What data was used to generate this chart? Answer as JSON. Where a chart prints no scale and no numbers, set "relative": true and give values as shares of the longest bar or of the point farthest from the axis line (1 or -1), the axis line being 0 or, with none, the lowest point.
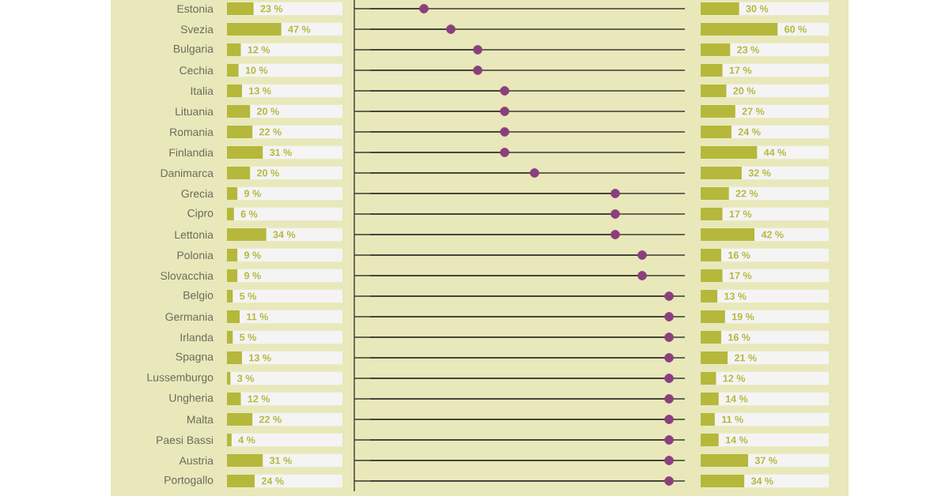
{
  "chart_data": [
    {
      "type": "bar",
      "orientation": "horizontal",
      "categories": [
        "Estonia",
        "Svezia",
        "Bulgaria",
        "Cechia",
        "Italia",
        "Lituania",
        "Romania",
        "Finlandia",
        "Danimarca",
        "Grecia",
        "Cipro",
        "Lettonia",
        "Polonia",
        "Slovacchia",
        "Belgio",
        "Germania",
        "Irlanda",
        "Spagna",
        "Lussemburgo",
        "Ungheria",
        "Malta",
        "Paesi Bassi",
        "Austria",
        "Portogallo"
      ],
      "values": [
        23,
        47,
        12,
        10,
        13,
        20,
        22,
        31,
        20,
        9,
        6,
        34,
        9,
        9,
        5,
        11,
        5,
        13,
        3,
        12,
        22,
        4,
        31,
        24
      ],
      "value_labels": [
        "23 %",
        "47 %",
        "12 %",
        "10 %",
        "13 %",
        "20 %",
        "22 %",
        "31 %",
        "20 %",
        "9 %",
        "6 %",
        "34 %",
        "9 %",
        "9 %",
        "5 %",
        "11 %",
        "5 %",
        "13 %",
        "3 %",
        "12 %",
        "22 %",
        "4 %",
        "31 %",
        "24 %"
      ],
      "color": "#b5b83a",
      "xlim": [
        0,
        100
      ],
      "tick_labels": "y"
    },
    {
      "type": "lollipop",
      "orientation": "horizontal",
      "categories": [
        null,
        null,
        null,
        null,
        null,
        null,
        null,
        null,
        null,
        null,
        null,
        null,
        null,
        null,
        null,
        null,
        null,
        null,
        null,
        null,
        null,
        null,
        null,
        null
      ],
      "values": [
        0.18,
        0.27,
        0.36,
        0.36,
        0.45,
        0.45,
        0.45,
        0.45,
        0.55,
        0.82,
        0.82,
        0.82,
        0.91,
        0.91,
        1,
        1,
        1,
        1,
        1,
        1,
        1,
        1,
        1,
        1
      ],
      "relative": true,
      "color": "#8b3f7e",
      "marker": "circle",
      "grid": "y",
      "tick_labels": false
    },
    {
      "type": "bar",
      "orientation": "horizontal",
      "categories": [
        null,
        null,
        null,
        null,
        null,
        null,
        null,
        null,
        null,
        null,
        null,
        null,
        null,
        null,
        null,
        null,
        null,
        null,
        null,
        null,
        null,
        null,
        null,
        null
      ],
      "values": [
        30,
        60,
        23,
        17,
        20,
        27,
        24,
        44,
        32,
        22,
        17,
        42,
        16,
        17,
        13,
        19,
        16,
        21,
        12,
        14,
        11,
        14,
        37,
        34
      ],
      "value_labels": [
        "30 %",
        "60 %",
        "23 %",
        "17 %",
        "20 %",
        "27 %",
        "24 %",
        "44 %",
        "32 %",
        "22 %",
        "17 %",
        "42 %",
        "16 %",
        "17 %",
        "13 %",
        "19 %",
        "16 %",
        "21 %",
        "12 %",
        "14 %",
        "11 %",
        "14 %",
        "37 %",
        "34 %"
      ],
      "color": "#b5b83a",
      "xlim": [
        0,
        100
      ],
      "tick_labels": false
    }
  ]
}
